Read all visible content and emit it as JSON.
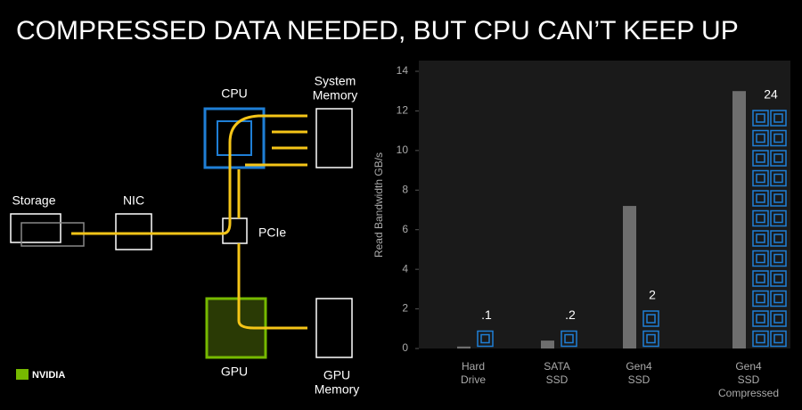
{
  "title": "COMPRESSED DATA NEEDED, BUT CPU CAN’T KEEP UP",
  "diagram": {
    "storage": "Storage",
    "nic": "NIC",
    "cpu": "CPU",
    "system_memory": [
      "System",
      "Memory"
    ],
    "pcie": "PCIe",
    "gpu": "GPU",
    "gpu_memory": [
      "GPU",
      "Memory"
    ]
  },
  "logo": "NVIDIA",
  "chart_data": {
    "type": "bar",
    "y_label": "Read Bandwidth GB/s",
    "categories": [
      "Hard Drive",
      "SATA SSD",
      "Gen4 SSD",
      "Gen4 SSD Compressed"
    ],
    "series": [
      {
        "color": "#6e6e6e",
        "values": [
          0.1,
          0.4,
          7.2,
          13
        ]
      },
      {
        "color": "#1f7fd6",
        "values": [
          0.1,
          0.2,
          2,
          24
        ],
        "value_labels": [
          ".1",
          ".2",
          "2",
          "24"
        ]
      }
    ],
    "ylim": [
      0,
      14
    ],
    "yticks": [
      0,
      2,
      4,
      6,
      8,
      10,
      12,
      14
    ]
  }
}
